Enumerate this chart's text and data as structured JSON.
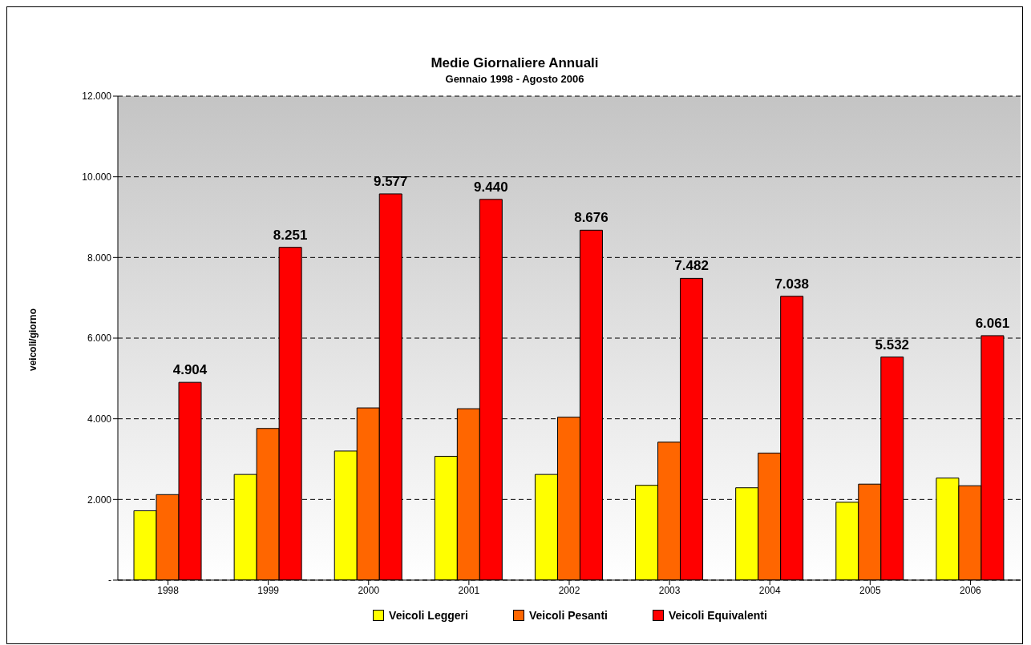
{
  "chart_data": {
    "type": "bar",
    "title": "Medie Giornaliere Annuali",
    "subtitle": "Gennaio 1998 - Agosto 2006",
    "ylabel": "veicoli/giorno",
    "categories": [
      "1998",
      "1999",
      "2000",
      "2001",
      "2002",
      "2003",
      "2004",
      "2005",
      "2006"
    ],
    "series": [
      {
        "name": "Veicoli Leggeri",
        "color": "#ffff00",
        "values": [
          1720,
          2620,
          3200,
          3070,
          2620,
          2350,
          2290,
          1930,
          2530
        ]
      },
      {
        "name": "Veicoli Pesanti",
        "color": "#ff6600",
        "values": [
          2120,
          3760,
          4270,
          4250,
          4040,
          3420,
          3150,
          2380,
          2340
        ]
      },
      {
        "name": "Veicoli Equivalenti",
        "color": "#ff0000",
        "values": [
          4904,
          8251,
          9577,
          9440,
          8676,
          7482,
          7038,
          5532,
          6061
        ],
        "value_labels": [
          "4.904",
          "8.251",
          "9.577",
          "9.440",
          "8.676",
          "7.482",
          "7.038",
          "5.532",
          "6.061"
        ]
      }
    ],
    "ylim": [
      0,
      12000
    ],
    "yticks": [
      {
        "value": 0,
        "label": "-"
      },
      {
        "value": 2000,
        "label": "2.000"
      },
      {
        "value": 4000,
        "label": "4.000"
      },
      {
        "value": 6000,
        "label": "6.000"
      },
      {
        "value": 8000,
        "label": "8.000"
      },
      {
        "value": 10000,
        "label": "10.000"
      },
      {
        "value": 12000,
        "label": "12.000"
      }
    ],
    "grid": "y",
    "legend": "bottom"
  }
}
